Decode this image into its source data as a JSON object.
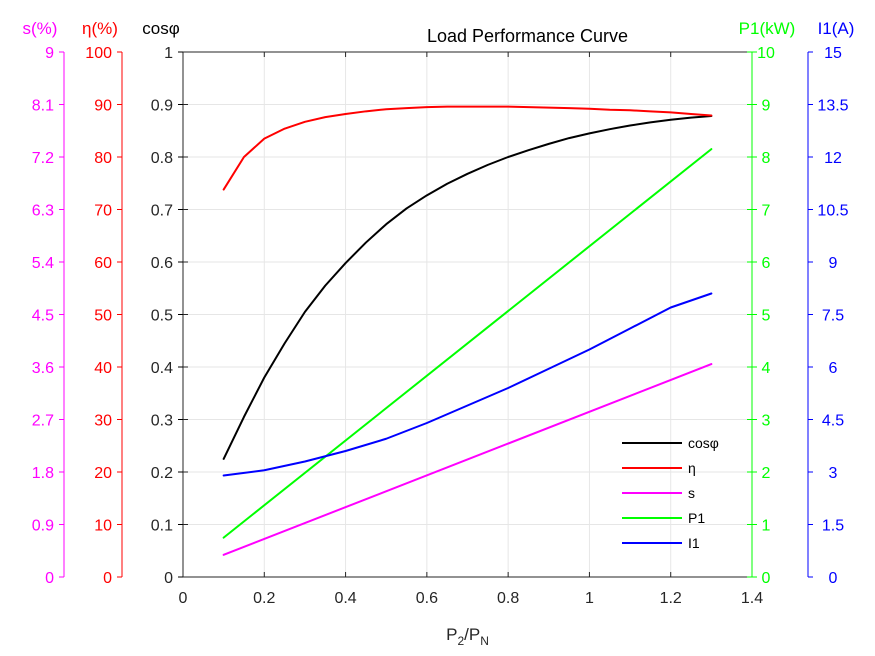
{
  "chart_data": {
    "type": "line",
    "title": "Load Performance Curve",
    "xlabel": "P₂/Pₙ",
    "xlabel_base": "P",
    "xlabel_sub1": "2",
    "xlabel_sep": "/P",
    "xlabel_sub2": "N",
    "xlim": [
      0,
      1.4
    ],
    "x_ticks": [
      "0",
      "0.2",
      "0.4",
      "0.6",
      "0.8",
      "1",
      "1.2",
      "1.4"
    ],
    "grid": true,
    "legend_position": "bottom-right",
    "axes": [
      {
        "id": "cos",
        "label": "cosφ",
        "side": "left",
        "color": "#000000",
        "ylim": [
          0,
          1
        ],
        "ticks": [
          "0",
          "0.1",
          "0.2",
          "0.3",
          "0.4",
          "0.5",
          "0.6",
          "0.7",
          "0.8",
          "0.9",
          "1"
        ]
      },
      {
        "id": "eta",
        "label": "η(%)",
        "side": "left",
        "color": "#ff0000",
        "ylim": [
          0,
          100
        ],
        "ticks": [
          "0",
          "10",
          "20",
          "30",
          "40",
          "50",
          "60",
          "70",
          "80",
          "90",
          "100"
        ]
      },
      {
        "id": "s",
        "label": "s(%)",
        "side": "left",
        "color": "#ff00ff",
        "ylim": [
          0,
          9
        ],
        "ticks": [
          "0",
          "0.9",
          "1.8",
          "2.7",
          "3.6",
          "4.5",
          "5.4",
          "6.3",
          "7.2",
          "8.1",
          "9"
        ]
      },
      {
        "id": "p1",
        "label": "P1(kW)",
        "side": "right",
        "color": "#00ff00",
        "ylim": [
          0,
          10
        ],
        "ticks": [
          "0",
          "1",
          "2",
          "3",
          "4",
          "5",
          "6",
          "7",
          "8",
          "9",
          "10"
        ]
      },
      {
        "id": "i1",
        "label": "I1(A)",
        "side": "right",
        "color": "#0000ff",
        "ylim": [
          0,
          15
        ],
        "ticks": [
          "0",
          "1.5",
          "3",
          "4.5",
          "6",
          "7.5",
          "9",
          "10.5",
          "12",
          "13.5",
          "15"
        ]
      }
    ],
    "series": [
      {
        "name": "cosφ",
        "axis": "cos",
        "color": "#000000",
        "x": [
          0.1,
          0.15,
          0.2,
          0.25,
          0.3,
          0.35,
          0.4,
          0.45,
          0.5,
          0.55,
          0.6,
          0.65,
          0.7,
          0.75,
          0.8,
          0.85,
          0.9,
          0.95,
          1.0,
          1.05,
          1.1,
          1.15,
          1.2,
          1.25,
          1.3
        ],
        "y": [
          0.225,
          0.305,
          0.38,
          0.445,
          0.505,
          0.555,
          0.598,
          0.637,
          0.672,
          0.702,
          0.727,
          0.749,
          0.768,
          0.785,
          0.8,
          0.813,
          0.825,
          0.836,
          0.845,
          0.853,
          0.86,
          0.866,
          0.871,
          0.875,
          0.878
        ]
      },
      {
        "name": "η",
        "axis": "eta",
        "color": "#ff0000",
        "x": [
          0.1,
          0.15,
          0.2,
          0.25,
          0.3,
          0.35,
          0.4,
          0.45,
          0.5,
          0.55,
          0.6,
          0.65,
          0.7,
          0.75,
          0.8,
          0.85,
          0.9,
          0.95,
          1.0,
          1.05,
          1.1,
          1.15,
          1.2,
          1.25,
          1.3
        ],
        "y": [
          73.8,
          80.0,
          83.5,
          85.4,
          86.7,
          87.6,
          88.2,
          88.7,
          89.1,
          89.3,
          89.5,
          89.6,
          89.6,
          89.6,
          89.6,
          89.5,
          89.4,
          89.3,
          89.2,
          89.0,
          88.9,
          88.7,
          88.5,
          88.2,
          87.9
        ]
      },
      {
        "name": "s",
        "axis": "s",
        "color": "#ff00ff",
        "x": [
          0.1,
          1.3
        ],
        "y": [
          0.38,
          3.65
        ]
      },
      {
        "name": "P1",
        "axis": "p1",
        "color": "#00ff00",
        "x": [
          0.1,
          1.3
        ],
        "y": [
          0.75,
          8.15
        ]
      },
      {
        "name": "I1",
        "axis": "i1",
        "color": "#0000ff",
        "x": [
          0.1,
          0.2,
          0.3,
          0.4,
          0.5,
          0.6,
          0.7,
          0.8,
          0.9,
          1.0,
          1.1,
          1.2,
          1.3
        ],
        "y": [
          2.9,
          3.05,
          3.3,
          3.6,
          3.95,
          4.4,
          4.9,
          5.4,
          5.95,
          6.5,
          7.1,
          7.7,
          8.1
        ]
      }
    ],
    "legend": [
      "cosφ",
      "η",
      "s",
      "P1",
      "I1"
    ]
  }
}
